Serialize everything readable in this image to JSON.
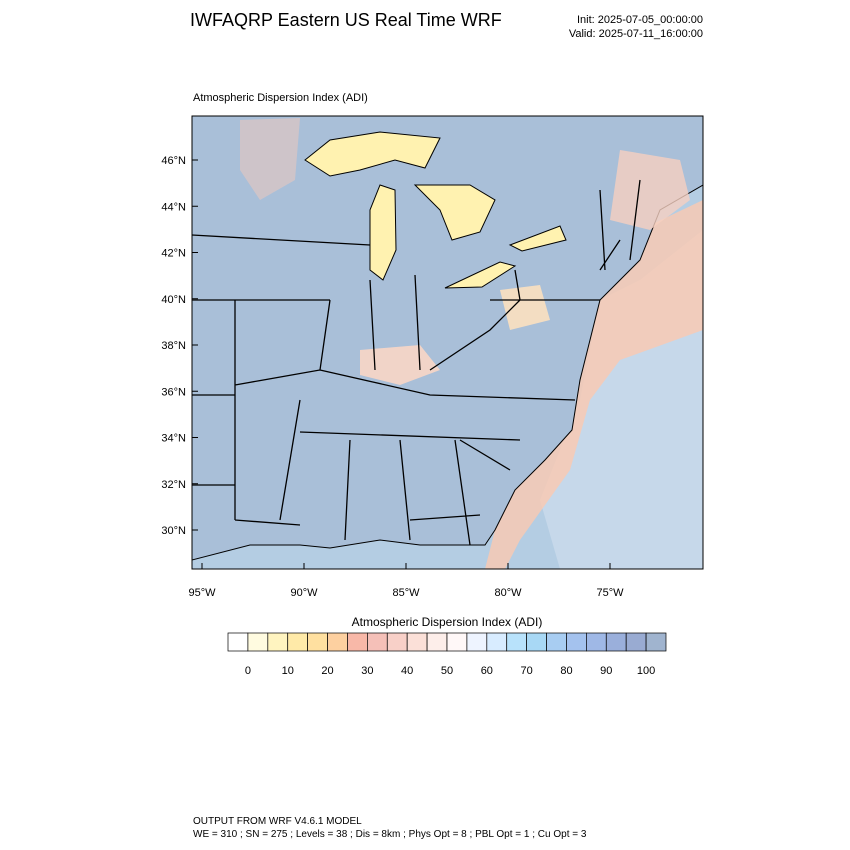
{
  "header": {
    "title": "IWFAQRP Eastern US Real Time WRF",
    "init": "Init: 2025-07-05_00:00:00",
    "valid": "Valid: 2025-07-11_16:00:00"
  },
  "map": {
    "subtitle": "Atmospheric Dispersion Index   (ADI)",
    "lat_labels": [
      "46°N",
      "44°N",
      "42°N",
      "40°N",
      "38°N",
      "36°N",
      "34°N",
      "32°N",
      "30°N"
    ],
    "lon_labels": [
      "95°W",
      "90°W",
      "85°W",
      "80°W",
      "75°W"
    ]
  },
  "colorbar": {
    "title": "Atmospheric Dispersion Index  (ADI)",
    "labels": [
      "0",
      "10",
      "20",
      "30",
      "40",
      "50",
      "60",
      "70",
      "80",
      "90",
      "100"
    ],
    "colors": [
      "#ffffff",
      "#fffbe0",
      "#fff4c0",
      "#ffeaa8",
      "#ffe0a0",
      "#fdd0a0",
      "#f8b8a8",
      "#f5c0b8",
      "#f8d0c8",
      "#fbe0d8",
      "#fdeeea",
      "#fff8f8",
      "#eef4ff",
      "#d8ecff",
      "#b8e2fb",
      "#a8d8f5",
      "#a8cdf2",
      "#a4c2ee",
      "#9fb8e6",
      "#9aafdb",
      "#99abd2",
      "#a0b4cf"
    ]
  },
  "footer": {
    "line1": "OUTPUT FROM WRF V4.6.1 MODEL",
    "line2": "WE = 310 ; SN = 275 ; Levels = 38 ; Dis = 8km ; Phys Opt = 8 ; PBL Opt = 1 ; Cu Opt = 3"
  }
}
